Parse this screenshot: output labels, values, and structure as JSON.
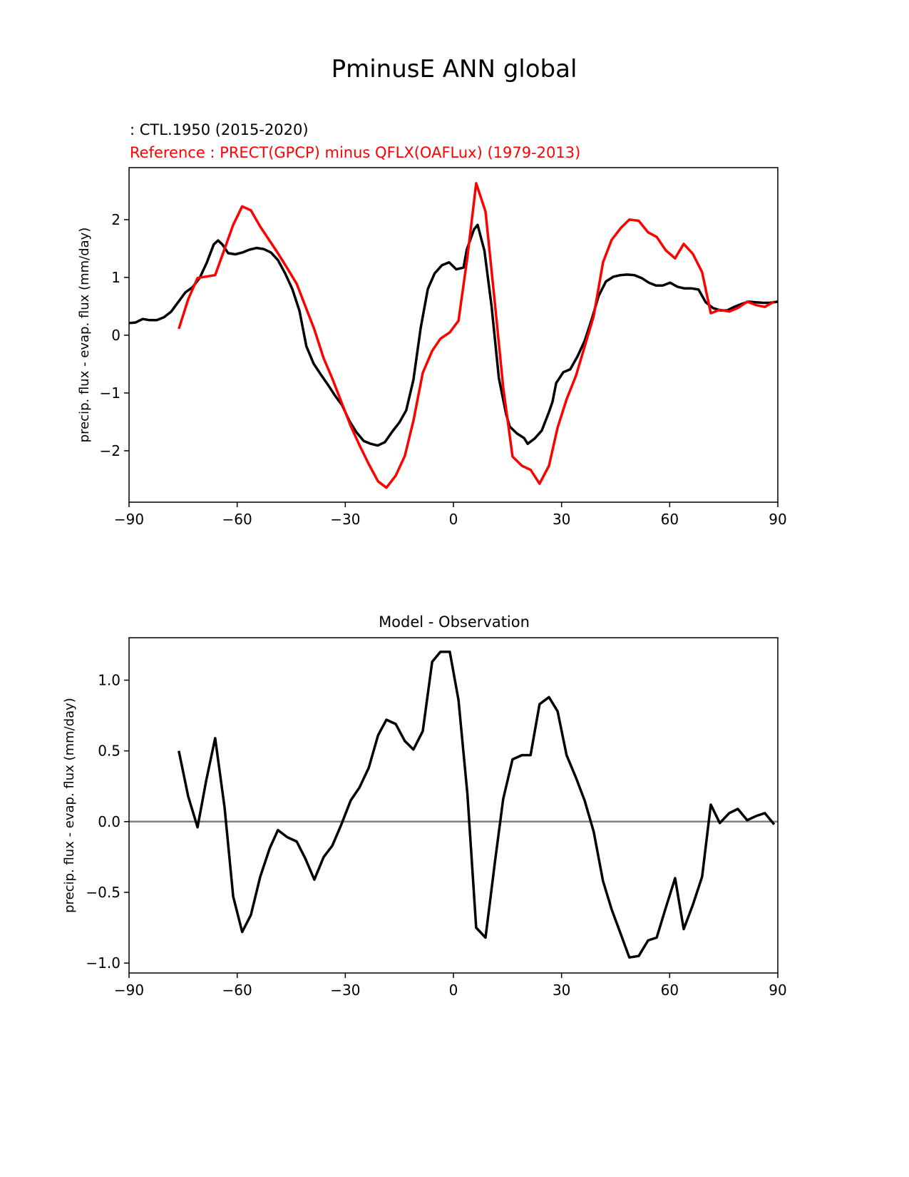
{
  "suptitle": "PminusE ANN global",
  "chart_data": [
    {
      "type": "line",
      "test_label": " : CTL.1950 (2015-2020)",
      "ref_label": "Reference : PRECT(GPCP) minus QFLX(OAFLux) (1979-2013)",
      "title": "",
      "xlabel": "",
      "ylabel": "precip. flux - evap. flux (mm/day)",
      "xlim": [
        -90,
        90
      ],
      "ylim": [
        -2.89,
        2.9
      ],
      "xticks": [
        -90,
        -60,
        -30,
        0,
        30,
        60,
        90
      ],
      "xtick_labels": [
        "−90",
        "−60",
        "−30",
        "0",
        "30",
        "60",
        "90"
      ],
      "yticks": [
        -2,
        -1,
        0,
        1,
        2
      ],
      "ytick_labels": [
        "−2",
        "−1",
        "0",
        "1",
        "2"
      ],
      "series": [
        {
          "name": "test",
          "color": "#000000",
          "x": [
            -90,
            -88.2,
            -86.2,
            -84.3,
            -82.3,
            -80.3,
            -78.3,
            -76.4,
            -74.4,
            -72.4,
            -70.4,
            -68.4,
            -66.5,
            -65.3,
            -64.1,
            -62.5,
            -60.5,
            -58.6,
            -56.6,
            -54.6,
            -52.6,
            -50.6,
            -48.7,
            -46.7,
            -44.7,
            -42.7,
            -40.8,
            -38.8,
            -36.8,
            -34.8,
            -32.8,
            -30.9,
            -28.9,
            -26.9,
            -24.9,
            -22.9,
            -21.0,
            -19.0,
            -17.0,
            -15.0,
            -13.1,
            -11.1,
            -9.1,
            -7.1,
            -5.2,
            -3.2,
            -1.2,
            0.8,
            2.8,
            3.7,
            5.7,
            6.7,
            8.6,
            10.6,
            12.6,
            14.6,
            15.6,
            17.6,
            19.6,
            20.6,
            22.5,
            24.5,
            26.5,
            27.5,
            28.5,
            30.5,
            32.4,
            34.4,
            36.4,
            38.4,
            40.3,
            42.3,
            44.3,
            46.3,
            48.2,
            50.2,
            52.2,
            54.2,
            56.2,
            58.1,
            60.1,
            62.1,
            64.1,
            66.1,
            68.0,
            70.0,
            72.0,
            74.0,
            76.0,
            77.9,
            79.9,
            81.9,
            83.9,
            85.8,
            87.8,
            90.0
          ],
          "y": [
            0.21,
            0.22,
            0.28,
            0.26,
            0.26,
            0.31,
            0.41,
            0.57,
            0.74,
            0.83,
            0.99,
            1.26,
            1.57,
            1.64,
            1.57,
            1.42,
            1.4,
            1.43,
            1.48,
            1.51,
            1.49,
            1.43,
            1.3,
            1.07,
            0.8,
            0.42,
            -0.19,
            -0.49,
            -0.68,
            -0.86,
            -1.05,
            -1.21,
            -1.48,
            -1.68,
            -1.83,
            -1.88,
            -1.91,
            -1.85,
            -1.67,
            -1.51,
            -1.3,
            -0.77,
            0.12,
            0.8,
            1.07,
            1.21,
            1.26,
            1.14,
            1.17,
            1.48,
            1.83,
            1.91,
            1.46,
            0.49,
            -0.74,
            -1.36,
            -1.58,
            -1.7,
            -1.78,
            -1.88,
            -1.79,
            -1.65,
            -1.33,
            -1.15,
            -0.83,
            -0.64,
            -0.59,
            -0.37,
            -0.1,
            0.28,
            0.68,
            0.93,
            1.01,
            1.04,
            1.05,
            1.04,
            0.99,
            0.91,
            0.86,
            0.86,
            0.91,
            0.84,
            0.81,
            0.81,
            0.79,
            0.57,
            0.47,
            0.43,
            0.43,
            0.49,
            0.54,
            0.58,
            0.57,
            0.56,
            0.56,
            0.58
          ]
        },
        {
          "name": "reference",
          "color": "#ff0000",
          "x": [
            -76.2,
            -73.6,
            -71.0,
            -66.1,
            -61.1,
            -58.6,
            -56.2,
            -53.6,
            -48.7,
            -46.1,
            -43.5,
            -38.6,
            -36.0,
            -33.6,
            -28.5,
            -26.1,
            -23.5,
            -20.9,
            -18.6,
            -16.0,
            -13.5,
            -11.1,
            -8.5,
            -5.9,
            -3.6,
            -1.0,
            1.4,
            3.9,
            6.3,
            8.9,
            11.5,
            13.8,
            16.4,
            19.0,
            21.4,
            23.9,
            26.5,
            28.9,
            31.4,
            34.0,
            38.9,
            41.5,
            43.9,
            46.5,
            48.8,
            51.4,
            54.0,
            56.4,
            58.9,
            61.5,
            63.9,
            66.4,
            69.0,
            71.4,
            73.9,
            76.5,
            78.9,
            81.5,
            84.0,
            86.4,
            89.0
          ],
          "y": [
            0.11,
            0.62,
            0.99,
            1.04,
            1.91,
            2.23,
            2.16,
            1.88,
            1.42,
            1.16,
            0.89,
            0.1,
            -0.4,
            -0.75,
            -1.57,
            -1.9,
            -2.23,
            -2.53,
            -2.64,
            -2.43,
            -2.09,
            -1.48,
            -0.65,
            -0.27,
            -0.06,
            0.05,
            0.25,
            1.36,
            2.63,
            2.14,
            0.56,
            -0.9,
            -2.1,
            -2.26,
            -2.33,
            -2.57,
            -2.26,
            -1.6,
            -1.11,
            -0.7,
            0.33,
            1.26,
            1.65,
            1.86,
            2.0,
            1.98,
            1.78,
            1.7,
            1.47,
            1.33,
            1.58,
            1.41,
            1.09,
            0.38,
            0.44,
            0.41,
            0.47,
            0.58,
            0.52,
            0.49,
            0.58
          ]
        }
      ]
    },
    {
      "type": "line",
      "title": "Model - Observation",
      "xlabel": "",
      "ylabel": "precip. flux - evap. flux (mm/day)",
      "xlim": [
        -90,
        90
      ],
      "ylim": [
        -1.07,
        1.3
      ],
      "xticks": [
        -90,
        -60,
        -30,
        0,
        30,
        60,
        90
      ],
      "xtick_labels": [
        "−90",
        "−60",
        "−30",
        "0",
        "30",
        "60",
        "90"
      ],
      "yticks": [
        -1.0,
        -0.5,
        0.0,
        0.5,
        1.0
      ],
      "ytick_labels": [
        "−1.0",
        "−0.5",
        "0.0",
        "0.5",
        "1.0"
      ],
      "zero_line_color": "#808080",
      "series": [
        {
          "name": "difference",
          "color": "#000000",
          "x": [
            -76.2,
            -73.6,
            -71.0,
            -68.6,
            -66.1,
            -63.5,
            -61.1,
            -58.6,
            -56.2,
            -53.6,
            -51.0,
            -48.7,
            -46.1,
            -43.5,
            -41.1,
            -38.6,
            -36.0,
            -33.6,
            -31.1,
            -28.5,
            -26.1,
            -23.5,
            -20.9,
            -18.6,
            -16.0,
            -13.5,
            -11.1,
            -8.5,
            -5.9,
            -3.6,
            -1.0,
            1.4,
            3.9,
            6.3,
            8.9,
            11.5,
            13.8,
            16.4,
            19.0,
            21.4,
            23.9,
            26.5,
            28.9,
            31.4,
            34.0,
            36.4,
            38.9,
            41.5,
            43.9,
            46.5,
            48.8,
            51.4,
            54.0,
            56.4,
            58.9,
            61.5,
            63.9,
            66.4,
            69.0,
            71.4,
            73.9,
            76.5,
            78.9,
            81.5,
            84.0,
            86.4,
            89.0
          ],
          "y": [
            0.5,
            0.18,
            -0.04,
            0.29,
            0.59,
            0.1,
            -0.53,
            -0.78,
            -0.66,
            -0.39,
            -0.19,
            -0.06,
            -0.11,
            -0.14,
            -0.26,
            -0.41,
            -0.25,
            -0.17,
            -0.02,
            0.15,
            0.24,
            0.38,
            0.61,
            0.72,
            0.69,
            0.57,
            0.51,
            0.64,
            1.13,
            1.2,
            1.2,
            0.86,
            0.19,
            -0.75,
            -0.82,
            -0.29,
            0.16,
            0.44,
            0.47,
            0.47,
            0.83,
            0.88,
            0.78,
            0.47,
            0.31,
            0.15,
            -0.07,
            -0.42,
            -0.62,
            -0.8,
            -0.96,
            -0.95,
            -0.84,
            -0.82,
            -0.61,
            -0.4,
            -0.76,
            -0.59,
            -0.39,
            0.12,
            -0.01,
            0.06,
            0.09,
            0.01,
            0.04,
            0.06,
            -0.02
          ]
        }
      ]
    }
  ]
}
